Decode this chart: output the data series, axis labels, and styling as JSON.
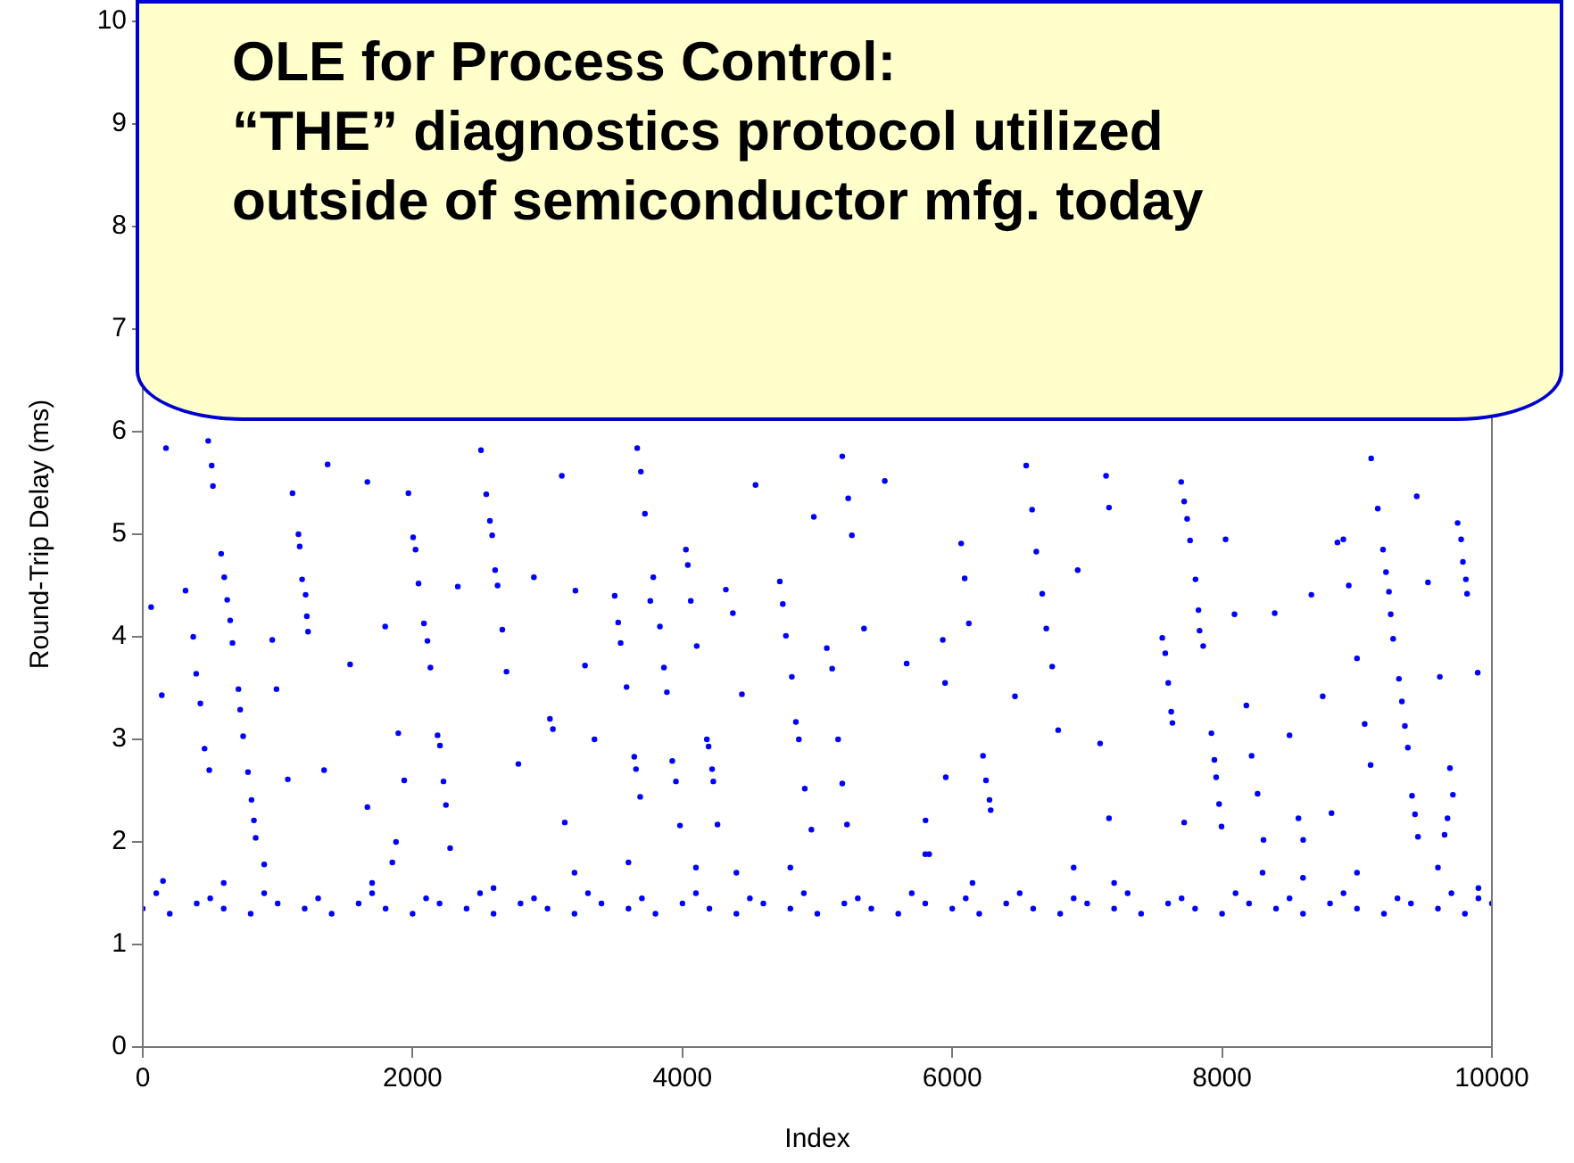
{
  "chart_data": {
    "type": "scatter",
    "xlabel": "Index",
    "ylabel": "Round-Trip Delay (ms)",
    "annotations": [
      "OLE for Process Control:\n“THE” diagnostics protocol utilized\noutside of semiconductor mfg. today"
    ],
    "color": "#0000ff",
    "marker": "circle",
    "xlim": [
      0,
      10000
    ],
    "ylim": [
      0,
      10
    ],
    "xticks": [
      0,
      2000,
      4000,
      6000,
      8000,
      10000
    ],
    "yticks": [
      0,
      1,
      2,
      3,
      4,
      5,
      6,
      7,
      8,
      9,
      10
    ],
    "x": [
      62,
      141,
      172,
      317,
      374,
      396,
      427,
      458,
      485,
      493,
      511,
      520,
      581,
      604,
      626,
      648,
      665,
      709,
      722,
      744,
      780,
      806,
      824,
      837,
      960,
      991,
      1075,
      1110,
      1154,
      1163,
      1181,
      1207,
      1216,
      1225,
      1344,
      1370,
      1537,
      1665,
      1665,
      1797,
      1877,
      1894,
      1938,
      1969,
      2004,
      2022,
      2044,
      2084,
      2110,
      2132,
      2185,
      2203,
      2229,
      2247,
      2278,
      2335,
      2507,
      2546,
      2573,
      2590,
      2612,
      2630,
      2665,
      2696,
      2784,
      2899,
      3018,
      3040,
      3106,
      3128,
      3207,
      3278,
      3348,
      3498,
      3524,
      3542,
      3586,
      3643,
      3656,
      3687,
      3665,
      3692,
      3722,
      3762,
      3784,
      3833,
      3863,
      3885,
      3925,
      3952,
      3982,
      4026,
      4040,
      4062,
      4106,
      4181,
      4194,
      4220,
      4229,
      4260,
      4322,
      4374,
      4441,
      4542,
      4722,
      4744,
      4767,
      4811,
      4841,
      4863,
      4907,
      4956,
      4974,
      5070,
      5110,
      5154,
      5185,
      5220,
      5185,
      5229,
      5256,
      5346,
      5500,
      5662,
      5930,
      5947,
      5952,
      6066,
      6092,
      6123,
      6228,
      6250,
      6276,
      6285,
      5802,
      5829,
      6465,
      6548,
      6592,
      6623,
      6667,
      6697,
      6741,
      6785,
      6930,
      7096,
      7140,
      7162,
      7162,
      7557,
      7579,
      7601,
      7623,
      7632,
      7697,
      7719,
      7741,
      7763,
      7803,
      7825,
      7833,
      7860,
      7719,
      7921,
      7943,
      7956,
      7978,
      7996,
      8026,
      8092,
      8180,
      8219,
      8263,
      8307,
      8390,
      8500,
      8566,
      8601,
      8662,
      8746,
      8811,
      8855,
      8899,
      8939,
      9000,
      9057,
      9101,
      9105,
      9154,
      9193,
      9215,
      9237,
      9250,
      9268,
      9311,
      9333,
      9355,
      9377,
      9408,
      9430,
      9452,
      9443,
      9526,
      9614,
      9649,
      9671,
      9689,
      9711,
      9746,
      9772,
      9785,
      9807,
      9816,
      9895,
      150,
      600,
      900,
      1700,
      1850,
      2600,
      3200,
      3600,
      4100,
      4400,
      4800,
      5800,
      6150,
      6900,
      7200,
      8300,
      8600,
      9000,
      9600,
      9900,
      0,
      200,
      400,
      600,
      800,
      1000,
      1200,
      1400,
      1600,
      1800,
      2000,
      2200,
      2400,
      2600,
      2800,
      3000,
      3200,
      3400,
      3600,
      3800,
      4000,
      4200,
      4400,
      4600,
      4800,
      5000,
      5200,
      5400,
      5600,
      5800,
      6000,
      6200,
      6400,
      6600,
      6800,
      7000,
      7200,
      7400,
      7600,
      7800,
      8000,
      8200,
      8400,
      8600,
      8800,
      9000,
      9200,
      9400,
      9600,
      9800,
      10000,
      100,
      500,
      900,
      1300,
      1700,
      2100,
      2500,
      2900,
      3300,
      3700,
      4100,
      4500,
      4900,
      5300,
      5700,
      6100,
      6500,
      6900,
      7300,
      7700,
      8100,
      8500,
      8900,
      9300,
      9700,
      9900
    ],
    "values": [
      4.29,
      3.43,
      5.84,
      4.45,
      4.0,
      3.64,
      3.35,
      2.91,
      5.91,
      2.7,
      5.67,
      5.47,
      4.81,
      4.58,
      4.36,
      4.16,
      3.94,
      3.49,
      3.29,
      3.03,
      2.68,
      2.41,
      2.21,
      2.04,
      3.97,
      3.49,
      2.61,
      5.4,
      5.0,
      4.88,
      4.56,
      4.41,
      4.2,
      4.05,
      2.7,
      5.68,
      3.73,
      5.51,
      2.34,
      4.1,
      2.0,
      3.06,
      2.6,
      5.4,
      4.97,
      4.85,
      4.52,
      4.13,
      3.96,
      3.7,
      3.04,
      2.94,
      2.59,
      2.36,
      1.94,
      4.49,
      5.82,
      5.39,
      5.13,
      4.99,
      4.65,
      4.5,
      4.07,
      3.66,
      2.76,
      4.58,
      3.2,
      3.1,
      5.57,
      2.19,
      4.45,
      3.72,
      3.0,
      4.4,
      4.14,
      3.94,
      3.51,
      2.83,
      2.71,
      2.44,
      5.84,
      5.61,
      5.2,
      4.35,
      4.58,
      4.1,
      3.7,
      3.46,
      2.79,
      2.59,
      2.16,
      4.85,
      4.7,
      4.35,
      3.91,
      3.0,
      2.93,
      2.71,
      2.59,
      2.17,
      4.46,
      4.23,
      3.44,
      5.48,
      4.54,
      4.32,
      4.01,
      3.61,
      3.17,
      3.0,
      2.52,
      2.12,
      5.17,
      3.89,
      3.69,
      3.0,
      2.57,
      2.17,
      5.76,
      5.35,
      4.99,
      4.08,
      5.52,
      3.74,
      3.97,
      3.55,
      2.63,
      4.91,
      4.57,
      4.13,
      2.84,
      2.6,
      2.41,
      2.31,
      2.21,
      1.88,
      3.42,
      5.67,
      5.24,
      4.83,
      4.42,
      4.08,
      3.71,
      3.09,
      4.65,
      2.96,
      5.57,
      5.26,
      2.23,
      3.99,
      3.84,
      3.55,
      3.27,
      3.16,
      5.51,
      5.32,
      5.15,
      4.94,
      4.56,
      4.26,
      4.06,
      3.91,
      2.19,
      3.06,
      2.8,
      2.63,
      2.37,
      2.15,
      4.95,
      4.22,
      3.33,
      2.84,
      2.47,
      2.02,
      4.23,
      3.04,
      2.23,
      2.02,
      4.41,
      3.42,
      2.28,
      4.92,
      4.95,
      4.5,
      3.79,
      3.15,
      2.75,
      5.74,
      5.25,
      4.85,
      4.63,
      4.44,
      4.22,
      3.98,
      3.59,
      3.37,
      3.13,
      2.92,
      2.45,
      2.27,
      2.05,
      5.37,
      4.53,
      3.61,
      2.07,
      2.23,
      2.72,
      2.46,
      5.11,
      4.95,
      4.73,
      4.56,
      4.42,
      3.65,
      1.62,
      1.6,
      1.78,
      1.6,
      1.8,
      1.55,
      1.7,
      1.8,
      1.75,
      1.7,
      1.75,
      1.88,
      1.6,
      1.75,
      1.6,
      1.7,
      1.65,
      1.7,
      1.75,
      1.55,
      1.35,
      1.3,
      1.4,
      1.35,
      1.3,
      1.4,
      1.35,
      1.3,
      1.4,
      1.35,
      1.3,
      1.4,
      1.35,
      1.3,
      1.4,
      1.35,
      1.3,
      1.4,
      1.35,
      1.3,
      1.4,
      1.35,
      1.3,
      1.4,
      1.35,
      1.3,
      1.4,
      1.35,
      1.3,
      1.4,
      1.35,
      1.3,
      1.4,
      1.35,
      1.3,
      1.4,
      1.35,
      1.3,
      1.4,
      1.35,
      1.3,
      1.4,
      1.35,
      1.3,
      1.4,
      1.35,
      1.3,
      1.4,
      1.35,
      1.3,
      1.4,
      1.5,
      1.45,
      1.5,
      1.45,
      1.5,
      1.45,
      1.5,
      1.45,
      1.5,
      1.45,
      1.5,
      1.45,
      1.5,
      1.45,
      1.5,
      1.45,
      1.5,
      1.45,
      1.5,
      1.45,
      1.5,
      1.45,
      1.5,
      1.45,
      1.5,
      1.45
    ]
  }
}
